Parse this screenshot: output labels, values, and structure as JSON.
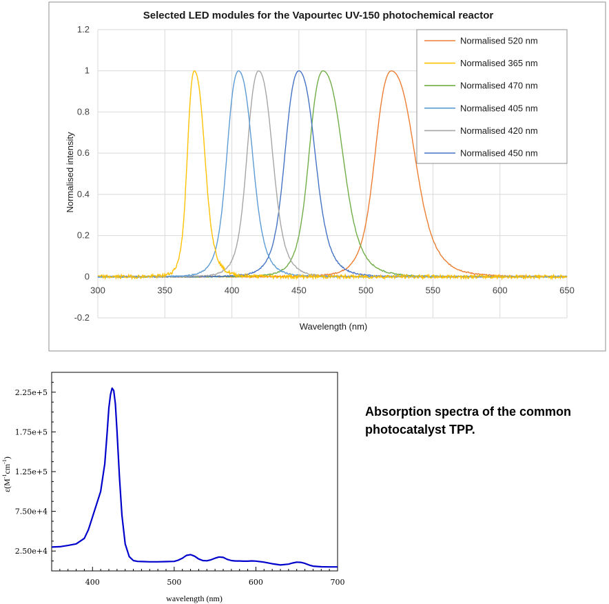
{
  "chart_data": [
    {
      "type": "line",
      "title": "Selected LED modules for the Vapourtec UV-150 photochemical reactor",
      "xlabel": "Wavelength (nm)",
      "ylabel": "Normalised intensity",
      "xlim": [
        300,
        650
      ],
      "ylim": [
        -0.2,
        1.2
      ],
      "x_ticks": [
        "300",
        "350",
        "400",
        "450",
        "500",
        "550",
        "600",
        "650"
      ],
      "y_ticks": [
        "-0.2",
        "0",
        "0.2",
        "0.4",
        "0.6",
        "0.8",
        "1",
        "1.2"
      ],
      "grid": true,
      "legend_position": "top-right",
      "series": [
        {
          "name": "Normalised 520 nm",
          "color": "#ED7D31",
          "peak": 519,
          "fwhm_left": 14,
          "fwhm_right": 20
        },
        {
          "name": "Normalised 365 nm",
          "color": "#FFC000",
          "peak": 372,
          "fwhm_left": 6,
          "fwhm_right": 9
        },
        {
          "name": "Normalised 470 nm",
          "color": "#70AD47",
          "peak": 468,
          "fwhm_left": 12,
          "fwhm_right": 17
        },
        {
          "name": "Normalised 405 nm",
          "color": "#5B9BD5",
          "peak": 405,
          "fwhm_left": 10,
          "fwhm_right": 12
        },
        {
          "name": "Normalised 420 nm",
          "color": "#A5A5A5",
          "peak": 420,
          "fwhm_left": 10,
          "fwhm_right": 12
        },
        {
          "name": "Normalised 450 nm",
          "color": "#4472C4",
          "peak": 450,
          "fwhm_left": 12,
          "fwhm_right": 14
        }
      ]
    },
    {
      "type": "line",
      "title": "",
      "xlabel": "wavelength (nm)",
      "ylabel": "ε(M⁻¹cm⁻¹)",
      "ylabel_parts": [
        "ε(M",
        "-1",
        "cm",
        "-1",
        ")"
      ],
      "xlim": [
        350,
        700
      ],
      "ylim": [
        0,
        250000
      ],
      "x_ticks": [
        "400",
        "500",
        "600",
        "700"
      ],
      "y_ticks": [
        "2.50e+4",
        "7.50e+4",
        "1.25e+5",
        "1.75e+5",
        "2.25e+5"
      ],
      "series": [
        {
          "name": "TPP",
          "color": "#0000CC",
          "x": [
            350,
            360,
            370,
            380,
            390,
            395,
            400,
            405,
            410,
            415,
            418,
            420,
            422,
            424,
            426,
            428,
            430,
            433,
            436,
            440,
            445,
            450,
            455,
            460,
            470,
            480,
            490,
            500,
            505,
            510,
            515,
            520,
            525,
            530,
            535,
            540,
            545,
            550,
            555,
            560,
            565,
            570,
            575,
            580,
            585,
            590,
            595,
            600,
            610,
            620,
            630,
            640,
            645,
            650,
            655,
            660,
            665,
            670,
            680,
            690,
            700
          ],
          "y": [
            30000,
            30500,
            32000,
            34000,
            41000,
            52000,
            68000,
            84000,
            100000,
            135000,
            175000,
            205000,
            222000,
            230000,
            227000,
            210000,
            175000,
            118000,
            70000,
            34000,
            18000,
            13000,
            12000,
            11800,
            11500,
            11500,
            11700,
            12000,
            13500,
            16000,
            19500,
            20500,
            18500,
            15000,
            13000,
            12800,
            14000,
            16000,
            17500,
            17000,
            14500,
            13000,
            12500,
            12500,
            12200,
            12200,
            12600,
            12300,
            11000,
            9000,
            7500,
            8500,
            10000,
            11000,
            10800,
            9500,
            7500,
            6000,
            5200,
            5000,
            5000
          ]
        }
      ]
    }
  ],
  "caption": "Absorption spectra of the common photocatalyst TPP."
}
